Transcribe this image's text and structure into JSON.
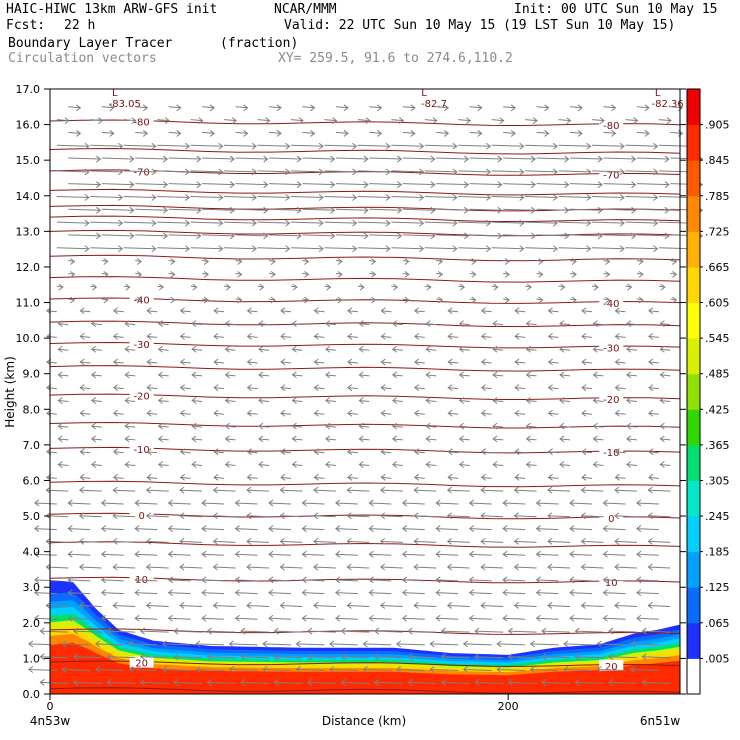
{
  "header": {
    "model": "HAIC-HIWC 13km ARW-GFS init",
    "org": "NCAR/MMM",
    "init": "Init: 00 UTC Sun 10 May 15",
    "fcst_label": "Fcst:",
    "fcst_value": "22 h",
    "valid": "Valid: 22 UTC Sun 10 May 15 (19 LST Sun 10 May 15)",
    "field": "Boundary Layer Tracer",
    "field_units": "(fraction)",
    "vectors": "Circulation vectors",
    "xy": "XY= 259.5, 91.6 to 274.6,110.2"
  },
  "colors": {
    "contour": "#8b1a1a",
    "vector": "#7f7f7f",
    "tracer_max": "#ff2a00"
  },
  "chart_data": {
    "type": "heatmap",
    "xlabel": "Distance (km)",
    "ylabel": "Height (km)",
    "xlim": [
      0,
      275
    ],
    "ylim": [
      0,
      17
    ],
    "xticks": [
      0,
      200
    ],
    "yticks": [
      "0.0",
      "1.0",
      "2.0",
      "3.0",
      "4.0",
      "5.0",
      "6.0",
      "7.0",
      "8.0",
      "9.0",
      "10.0",
      "11.0",
      "12.0",
      "13.0",
      "14.0",
      "15.0",
      "16.0",
      "17.0"
    ],
    "x_start_label": "4n53w",
    "x_end_label": "6n51w",
    "colorbar": {
      "labels": [
        ".005",
        ".065",
        ".125",
        ".185",
        ".245",
        ".305",
        ".365",
        ".425",
        ".485",
        ".545",
        ".605",
        ".665",
        ".725",
        ".785",
        ".845",
        ".905"
      ],
      "colors": [
        "#ffffff",
        "#1e32ff",
        "#0a6cff",
        "#00a0ff",
        "#00cfff",
        "#00e8c8",
        "#00e070",
        "#30d800",
        "#90e000",
        "#d8f000",
        "#ffff00",
        "#ffd800",
        "#ffb000",
        "#ff8800",
        "#ff5a00",
        "#ff2a00",
        "#f00000"
      ]
    },
    "temperature_contours": [
      {
        "label": "-80",
        "height": 16.1
      },
      {
        "label": "-70",
        "height": 14.7
      },
      {
        "label": "-40",
        "height": 11.1
      },
      {
        "label": "-30",
        "height": 9.85
      },
      {
        "label": "-20",
        "height": 8.4
      },
      {
        "label": "-10",
        "height": 6.9
      },
      {
        "label": "0",
        "height": 5.05
      },
      {
        "label": "10",
        "height": 3.25
      },
      {
        "label": "20",
        "height": 0.9
      }
    ],
    "pressure_lows": [
      {
        "label": "L",
        "value": "-83.05",
        "x": 30
      },
      {
        "label": "L",
        "value": "-82.7",
        "x": 165
      },
      {
        "label": "L",
        "value": "-82.36",
        "x": 267
      }
    ],
    "tracer_top_km": [
      [
        0,
        3.2
      ],
      [
        10,
        3.15
      ],
      [
        20,
        2.4
      ],
      [
        30,
        1.8
      ],
      [
        45,
        1.5
      ],
      [
        70,
        1.35
      ],
      [
        110,
        1.3
      ],
      [
        150,
        1.3
      ],
      [
        175,
        1.15
      ],
      [
        200,
        1.1
      ],
      [
        220,
        1.3
      ],
      [
        240,
        1.4
      ],
      [
        255,
        1.7
      ],
      [
        265,
        1.8
      ],
      [
        275,
        1.95
      ]
    ]
  }
}
